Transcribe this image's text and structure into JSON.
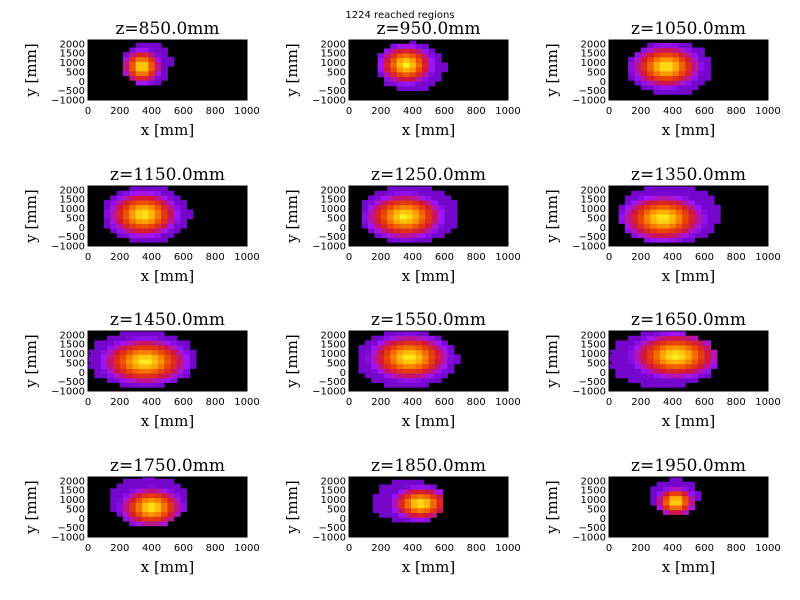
{
  "figure": {
    "suptitle": "1224 reached regions"
  },
  "chart_data": {
    "type": "heatmap",
    "layout": "4x3 grid of small-multiple heatmaps",
    "xlabel": "x [mm]",
    "ylabel": "y [mm]",
    "xlim": [
      0,
      1000
    ],
    "ylim": [
      -1000,
      2200
    ],
    "xticks": [
      0,
      200,
      400,
      600,
      800,
      1000
    ],
    "yticks": [
      -1000,
      -500,
      0,
      500,
      1000,
      1500,
      2000
    ],
    "colormap": "gnuplot (black → purple → red → orange → yellow)",
    "background_color": "#000000",
    "panels": [
      {
        "title": "z=850.0mm",
        "z": 850,
        "x_range": [
          220,
          520
        ],
        "y_range": [
          -200,
          2100
        ],
        "peak": [
          340,
          800
        ]
      },
      {
        "title": "z=950.0mm",
        "z": 950,
        "x_range": [
          180,
          600
        ],
        "y_range": [
          -500,
          2100
        ],
        "peak": [
          360,
          900
        ]
      },
      {
        "title": "z=1050.0mm",
        "z": 1050,
        "x_range": [
          120,
          650
        ],
        "y_range": [
          -700,
          2100
        ],
        "peak": [
          360,
          800
        ]
      },
      {
        "title": "z=1150.0mm",
        "z": 1150,
        "x_range": [
          100,
          640
        ],
        "y_range": [
          -800,
          2200
        ],
        "peak": [
          350,
          700
        ]
      },
      {
        "title": "z=1250.0mm",
        "z": 1250,
        "x_range": [
          80,
          680
        ],
        "y_range": [
          -800,
          2200
        ],
        "peak": [
          350,
          600
        ]
      },
      {
        "title": "z=1350.0mm",
        "z": 1350,
        "x_range": [
          60,
          700
        ],
        "y_range": [
          -800,
          2200
        ],
        "peak": [
          340,
          500
        ]
      },
      {
        "title": "z=1450.0mm",
        "z": 1450,
        "x_range": [
          0,
          680
        ],
        "y_range": [
          -800,
          2200
        ],
        "peak": [
          360,
          600
        ]
      },
      {
        "title": "z=1550.0mm",
        "z": 1550,
        "x_range": [
          60,
          680
        ],
        "y_range": [
          -800,
          2200
        ],
        "peak": [
          380,
          800
        ]
      },
      {
        "title": "z=1650.0mm",
        "z": 1650,
        "x_range": [
          0,
          680
        ],
        "y_range": [
          -800,
          2200
        ],
        "peak": [
          420,
          900
        ]
      },
      {
        "title": "z=1750.0mm",
        "z": 1750,
        "x_range": [
          140,
          620
        ],
        "y_range": [
          -400,
          2200
        ],
        "peak": [
          400,
          600
        ]
      },
      {
        "title": "z=1850.0mm",
        "z": 1850,
        "x_range": [
          150,
          600
        ],
        "y_range": [
          -200,
          2000
        ],
        "peak": [
          450,
          800
        ]
      },
      {
        "title": "z=1950.0mm",
        "z": 1950,
        "x_range": [
          260,
          560
        ],
        "y_range": [
          200,
          2100
        ],
        "peak": [
          420,
          900
        ]
      }
    ]
  }
}
